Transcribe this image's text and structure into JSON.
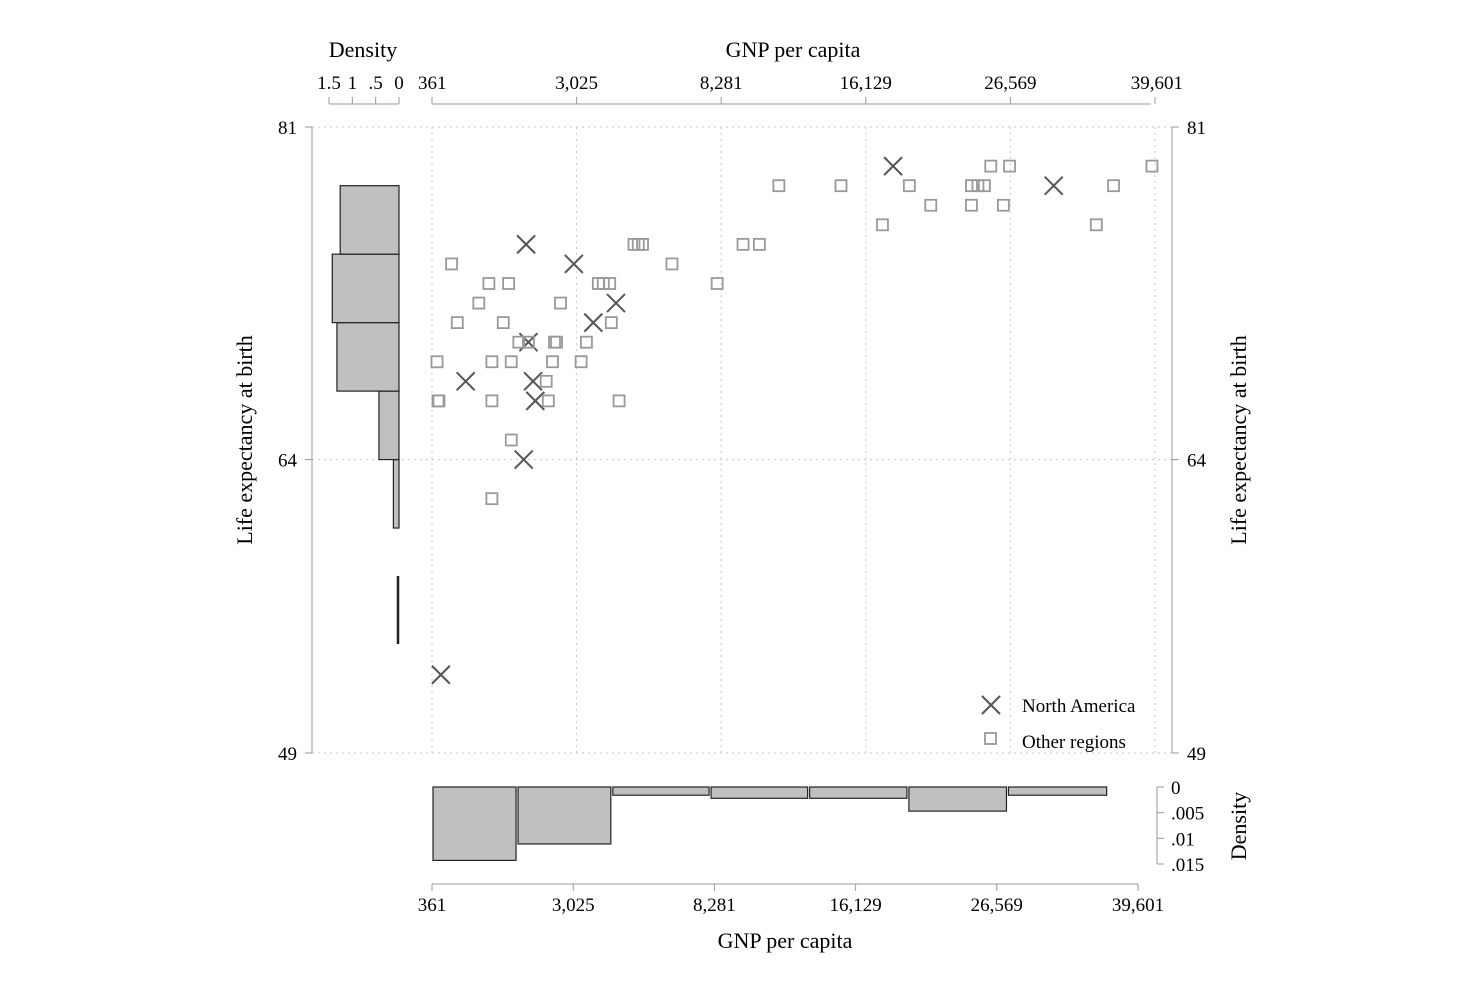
{
  "chart_data": [
    {
      "type": "scatter",
      "xlabel_top": "GNP per capita",
      "ylabel": "Life expectancy at birth",
      "x_scale": "sqrt",
      "x_ticks": [
        361,
        3025,
        8281,
        16129,
        26569,
        39601
      ],
      "x_tick_labels": [
        "361",
        "3,025",
        "8,281",
        "16,129",
        "26,569",
        "39,601"
      ],
      "xlim": [
        361,
        39601
      ],
      "y_ticks": [
        49,
        64,
        81
      ],
      "y_tick_labels": [
        "49",
        "64",
        "81"
      ],
      "ylim": [
        49,
        81
      ],
      "grid": true,
      "legend_position": "bottom-right",
      "series": [
        {
          "name": "North America",
          "marker": "x",
          "color": "#555555",
          "points": [
            [
              17900,
              79
            ],
            [
              30200,
              78
            ],
            [
              1800,
              75
            ],
            [
              2950,
              74
            ],
            [
              4200,
              72
            ],
            [
              3500,
              71
            ],
            [
              1850,
              70
            ],
            [
              1950,
              68
            ],
            [
              750,
              68
            ],
            [
              2000,
              67
            ],
            [
              1750,
              64
            ],
            [
              450,
              53
            ]
          ]
        },
        {
          "name": "Other regions",
          "marker": "square",
          "color": "#999999",
          "points": [
            [
              39300,
              79
            ],
            [
              25000,
              79
            ],
            [
              26500,
              79
            ],
            [
              11100,
              78
            ],
            [
              14600,
              78
            ],
            [
              19000,
              78
            ],
            [
              23500,
              78
            ],
            [
              24000,
              78
            ],
            [
              24500,
              78
            ],
            [
              20500,
              77
            ],
            [
              23500,
              77
            ],
            [
              26000,
              77
            ],
            [
              17200,
              76
            ],
            [
              34000,
              76
            ],
            [
              35600,
              78
            ],
            [
              9300,
              75
            ],
            [
              10100,
              75
            ],
            [
              4800,
              75
            ],
            [
              4950,
              75
            ],
            [
              5100,
              75
            ],
            [
              570,
              74
            ],
            [
              6200,
              74
            ],
            [
              1100,
              73
            ],
            [
              1450,
              73
            ],
            [
              3650,
              73
            ],
            [
              3800,
              73
            ],
            [
              4000,
              73
            ],
            [
              8100,
              73
            ],
            [
              940,
              72
            ],
            [
              2600,
              72
            ],
            [
              640,
              71
            ],
            [
              1350,
              71
            ],
            [
              4050,
              71
            ],
            [
              1650,
              70
            ],
            [
              1850,
              70
            ],
            [
              2450,
              70
            ],
            [
              2500,
              70
            ],
            [
              3300,
              70
            ],
            [
              410,
              69
            ],
            [
              1150,
              69
            ],
            [
              1500,
              69
            ],
            [
              2400,
              69
            ],
            [
              3150,
              69
            ],
            [
              2250,
              68
            ],
            [
              420,
              67
            ],
            [
              430,
              67
            ],
            [
              1150,
              67
            ],
            [
              2300,
              67
            ],
            [
              4300,
              67
            ],
            [
              1500,
              65
            ],
            [
              1150,
              62
            ]
          ]
        }
      ]
    },
    {
      "type": "bar",
      "orientation": "horizontal",
      "title": "Density",
      "variable": "Life expectancy at birth",
      "x_ticks": [
        1.5,
        1,
        0.5,
        0
      ],
      "x_tick_labels": [
        "1.5",
        "1",
        ".5",
        "0"
      ],
      "xlim": [
        0,
        1.5
      ],
      "bins": [
        {
          "from": 53.5,
          "to": 57.0,
          "density": 0.0
        },
        {
          "from": 57.0,
          "to": 60.5,
          "density": 0.0
        },
        {
          "from": 60.5,
          "to": 64.0,
          "density": 0.12
        },
        {
          "from": 64.0,
          "to": 67.5,
          "density": 0.43
        },
        {
          "from": 67.5,
          "to": 71.0,
          "density": 1.33
        },
        {
          "from": 71.0,
          "to": 74.5,
          "density": 1.43
        },
        {
          "from": 74.5,
          "to": 78.0,
          "density": 1.26
        }
      ]
    },
    {
      "type": "bar",
      "title": "Density",
      "xlabel": "GNP per capita",
      "variable": "GNP per capita",
      "x_ticks": [
        361,
        3025,
        8281,
        16129,
        26569,
        39601
      ],
      "x_tick_labels": [
        "361",
        "3,025",
        "8,281",
        "16,129",
        "26,569",
        "39,601"
      ],
      "y_ticks": [
        0,
        0.005,
        0.01,
        0.015
      ],
      "y_tick_labels": [
        "0",
        ".005",
        ".01",
        ".015"
      ],
      "ylim": [
        0,
        0.015
      ],
      "bins": [
        {
          "from": 361,
          "to": 1655,
          "density": 0.0143
        },
        {
          "from": 1655,
          "to": 4205,
          "density": 0.0111
        },
        {
          "from": 4205,
          "to": 8081,
          "density": 0.0016
        },
        {
          "from": 8081,
          "to": 13231,
          "density": 0.0022
        },
        {
          "from": 13231,
          "to": 19693,
          "density": 0.0022
        },
        {
          "from": 19693,
          "to": 27462,
          "density": 0.0047
        },
        {
          "from": 27462,
          "to": 36580,
          "density": 0.0016
        }
      ]
    }
  ]
}
